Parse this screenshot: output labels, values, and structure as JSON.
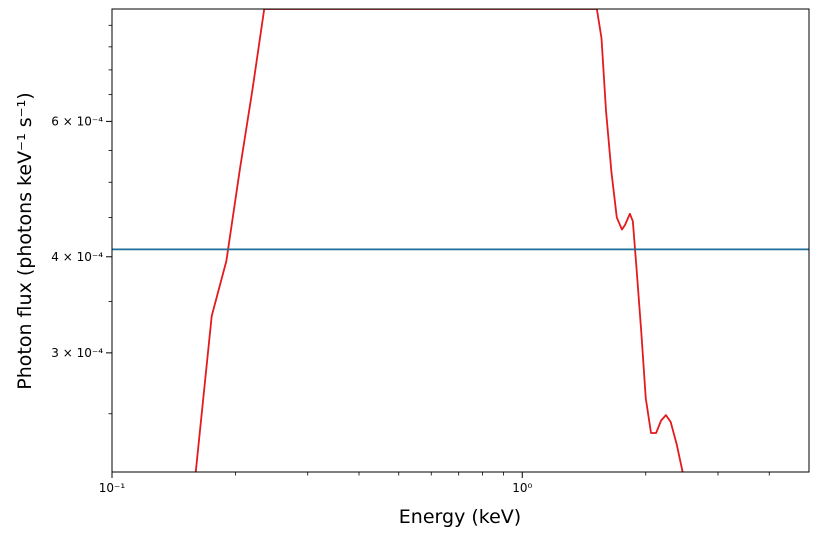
{
  "chart_data": {
    "type": "line",
    "title": "",
    "xlabel": "Energy (keV)",
    "ylabel": "Photon flux (photons keV⁻¹ s⁻¹)",
    "xscale": "log",
    "yscale": "log",
    "xlim": [
      0.1,
      5.0
    ],
    "ylim": [
      0.00021,
      0.00084
    ],
    "grid": false,
    "legend": "none",
    "x_major_ticks": [
      {
        "value": 0.1,
        "label": "10⁻¹"
      },
      {
        "value": 1.0,
        "label": "10⁰"
      }
    ],
    "y_ticks": [
      {
        "value": 0.0003,
        "label": "3 × 10⁻⁴"
      },
      {
        "value": 0.0004,
        "label": "4 × 10⁻⁴"
      },
      {
        "value": 0.0006,
        "label": "6 × 10⁻⁴"
      }
    ],
    "series": [
      {
        "color": "#e41a1c",
        "x": [
          0.16,
          0.175,
          0.19,
          0.205,
          0.22,
          0.235,
          1.52,
          1.56,
          1.6,
          1.65,
          1.7,
          1.75,
          1.78,
          1.83,
          1.86,
          1.9,
          1.95,
          2.0,
          2.06,
          2.12,
          2.18,
          2.24,
          2.3,
          2.38,
          2.46
        ],
        "y": [
          0.00021,
          0.000335,
          0.000395,
          0.00052,
          0.00066,
          0.00084,
          0.00084,
          0.00077,
          0.00062,
          0.000515,
          0.00045,
          0.000434,
          0.00044,
          0.000455,
          0.000445,
          0.000385,
          0.00032,
          0.000262,
          0.000236,
          0.000236,
          0.000245,
          0.000249,
          0.000244,
          0.000228,
          0.00021
        ]
      },
      {
        "color": "#1f6f9a",
        "x": [
          0.1,
          5.0
        ],
        "y": [
          0.000409,
          0.000409
        ]
      }
    ]
  }
}
